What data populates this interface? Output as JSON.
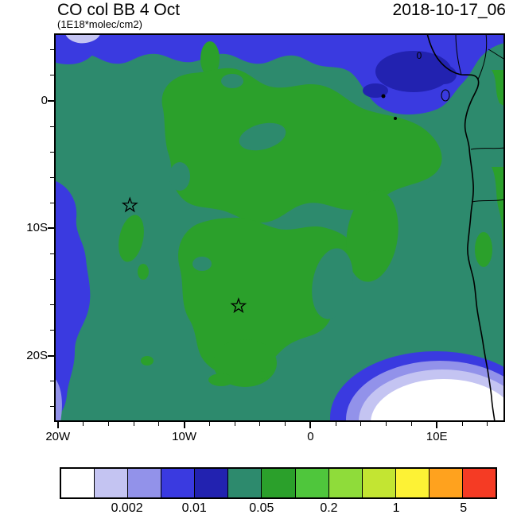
{
  "header": {
    "title": "CO col BB 4 Oct",
    "units": "(1E18*molec/cm2)",
    "timestamp": "2018-10-17_06"
  },
  "palette": {
    "white": "#ffffff",
    "lavender": "#c4c4f2",
    "periwinkle": "#9292ea",
    "blue": "#3a3ae0",
    "navy": "#2222b0",
    "teal": "#2d8a6d",
    "green": "#2ba02b",
    "bright_green": "#4fc63c",
    "yellow_green": "#8fdc3a",
    "lime": "#c3e532",
    "yellow": "#fdf235",
    "orange": "#ffa21e",
    "red": "#f53b24",
    "coastline": "#000000"
  },
  "chart_data": {
    "type": "heatmap",
    "subtype": "filled-contour lat/lon map",
    "title": "CO col BB 4 Oct",
    "units": "1E18*molec/cm2",
    "timestamp": "2018-10-17_06",
    "lon_range": [
      -20.3,
      15.4
    ],
    "lat_range": [
      -25.2,
      5.3
    ],
    "x_ticks": [
      {
        "label": "20W",
        "lon": -20
      },
      {
        "label": "10W",
        "lon": -10
      },
      {
        "label": "0",
        "lon": 0
      },
      {
        "label": "10E",
        "lon": 10
      }
    ],
    "y_ticks": [
      {
        "label": "0",
        "lat": 0
      },
      {
        "label": "10S",
        "lat": -10
      },
      {
        "label": "20S",
        "lat": -20
      }
    ],
    "minor_tick_step_deg": 2,
    "colorbar": {
      "n_cells": 13,
      "colors": [
        "#ffffff",
        "#c4c4f2",
        "#9292ea",
        "#3a3ae0",
        "#2222b0",
        "#2d8a6d",
        "#2ba02b",
        "#4fc63c",
        "#8fdc3a",
        "#c3e532",
        "#fdf235",
        "#ffa21e",
        "#f53b24"
      ],
      "levels": [
        0.002,
        0.01,
        0.05,
        0.2,
        1,
        5
      ],
      "labels": [
        {
          "text": "0.002",
          "boundary_index": 2
        },
        {
          "text": "0.01",
          "boundary_index": 4
        },
        {
          "text": "0.05",
          "boundary_index": 6
        },
        {
          "text": "0.2",
          "boundary_index": 8
        },
        {
          "text": "1",
          "boundary_index": 10
        },
        {
          "text": "5",
          "boundary_index": 12
        }
      ]
    },
    "markers": [
      {
        "type": "star",
        "lon": -14.3,
        "lat": -8.2
      },
      {
        "type": "star",
        "lon": -5.7,
        "lat": -16.1
      }
    ],
    "annotations": [
      {
        "text": "0",
        "lon": 8.6,
        "lat": 3.55
      }
    ],
    "overlays": [
      "coastline",
      "country borders",
      "island outline",
      "island dots",
      "star markers"
    ],
    "field_features": [
      {
        "region": "background over most of the domain",
        "value_band": "0.02-0.05",
        "color": "teal"
      },
      {
        "region": "large central plume (5W-8E, 2S-18S) plus small patches near the stars and along the eastern coast",
        "value_band": "0.05-0.2",
        "color": "green"
      },
      {
        "region": "band along northern edge (0-5N) and north-east corner near the Gulf of Guinea coast",
        "value_band": "0.002-0.01",
        "color": "blue with darker navy cores"
      },
      {
        "region": "strip along western edge (south of 5S)",
        "value_band": "0.002-0.01",
        "color": "blue"
      },
      {
        "region": "south-east corner (2E-15E, 18S-25S), concentric minimum",
        "value_band": "< 0.002 at the white core, rising outward through lavender, periwinkle and blue rings",
        "color": "white core"
      }
    ]
  }
}
